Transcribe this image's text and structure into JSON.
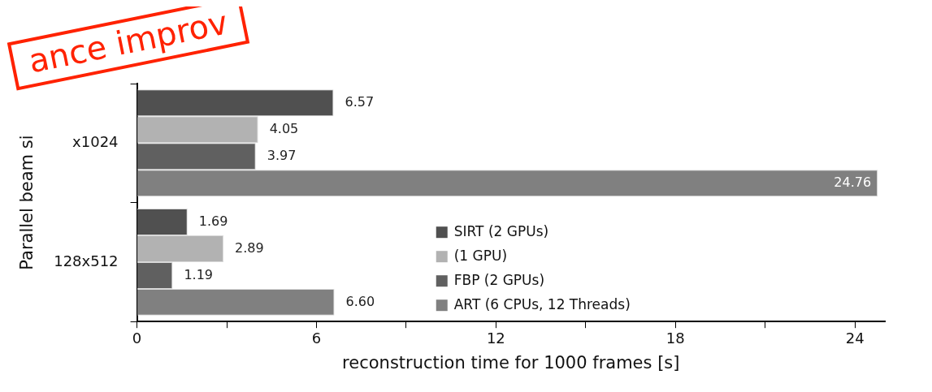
{
  "chart_data": {
    "type": "bar",
    "orientation": "horizontal",
    "categories": [
      "x1024",
      "128x512"
    ],
    "series": [
      {
        "name": "SIRT (2 GPUs)",
        "color": "#505050",
        "values": [
          6.57,
          1.69
        ],
        "value_labels": [
          "6.57",
          "1.69"
        ]
      },
      {
        "name": "(1 GPU)",
        "color": "#b2b2b2",
        "values": [
          4.05,
          2.89
        ],
        "value_labels": [
          "4.05",
          "2.89"
        ]
      },
      {
        "name": "FBP (2 GPUs)",
        "color": "#606060",
        "values": [
          3.97,
          1.19
        ],
        "value_labels": [
          "3.97",
          "1.19"
        ]
      },
      {
        "name": "ART (6 CPUs, 12 Threads)",
        "color": "#808080",
        "values": [
          24.76,
          6.6
        ],
        "value_labels": [
          "24.76",
          "6.60"
        ]
      }
    ],
    "xlim": [
      0,
      25
    ],
    "xticks": [
      0,
      {
        "value": 3,
        "label": null
      },
      6,
      {
        "value": 9,
        "label": null
      },
      12,
      {
        "value": 15,
        "label": null
      },
      18,
      {
        "value": 21,
        "label": null
      },
      24
    ],
    "xlabel": "reconstruction time for 1000 frames [s]",
    "ylabel": "Parallel beam si",
    "legend": "bottom",
    "grid": false,
    "annotations": [
      "ance improv"
    ]
  }
}
